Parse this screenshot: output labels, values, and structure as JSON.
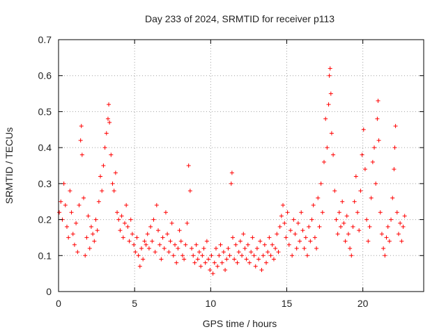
{
  "chart_data": {
    "type": "scatter",
    "title": "Day 233 of 2024, SRMTID for receiver p113",
    "xlabel": "GPS time / hours",
    "ylabel": "SRMTID / TECUs",
    "xlim": [
      0,
      24
    ],
    "ylim": [
      0,
      0.7
    ],
    "xticks": [
      0,
      5,
      10,
      15,
      20
    ],
    "xtick_labels": [
      "0",
      "5",
      "10",
      "15",
      "20"
    ],
    "yticks": [
      0,
      0.1,
      0.2,
      0.3,
      0.4,
      0.5,
      0.6,
      0.7
    ],
    "ytick_labels": [
      "0",
      "0.1",
      "0.2",
      "0.3",
      "0.4",
      "0.5",
      "0.6",
      "0.7"
    ],
    "grid": true,
    "marker": "+",
    "color": "#ff0000",
    "series": [
      {
        "name": "SRMTID",
        "points": [
          [
            0.05,
            0.22
          ],
          [
            0.15,
            0.25
          ],
          [
            0.25,
            0.2
          ],
          [
            0.35,
            0.3
          ],
          [
            0.45,
            0.24
          ],
          [
            0.55,
            0.18
          ],
          [
            0.65,
            0.15
          ],
          [
            0.75,
            0.28
          ],
          [
            0.85,
            0.22
          ],
          [
            0.95,
            0.16
          ],
          [
            1.05,
            0.13
          ],
          [
            1.15,
            0.19
          ],
          [
            1.25,
            0.11
          ],
          [
            1.35,
            0.24
          ],
          [
            1.45,
            0.42
          ],
          [
            1.5,
            0.46
          ],
          [
            1.55,
            0.38
          ],
          [
            1.65,
            0.26
          ],
          [
            1.75,
            0.1
          ],
          [
            1.85,
            0.15
          ],
          [
            1.95,
            0.21
          ],
          [
            2.05,
            0.12
          ],
          [
            2.15,
            0.18
          ],
          [
            2.25,
            0.16
          ],
          [
            2.35,
            0.14
          ],
          [
            2.45,
            0.2
          ],
          [
            2.55,
            0.17
          ],
          [
            2.65,
            0.25
          ],
          [
            2.75,
            0.32
          ],
          [
            2.85,
            0.28
          ],
          [
            2.95,
            0.35
          ],
          [
            3.05,
            0.4
          ],
          [
            3.15,
            0.44
          ],
          [
            3.25,
            0.48
          ],
          [
            3.3,
            0.52
          ],
          [
            3.35,
            0.47
          ],
          [
            3.45,
            0.38
          ],
          [
            3.55,
            0.3
          ],
          [
            3.65,
            0.28
          ],
          [
            3.75,
            0.33
          ],
          [
            3.85,
            0.22
          ],
          [
            3.95,
            0.2
          ],
          [
            4.05,
            0.17
          ],
          [
            4.15,
            0.21
          ],
          [
            4.25,
            0.15
          ],
          [
            4.35,
            0.19
          ],
          [
            4.45,
            0.24
          ],
          [
            4.55,
            0.18
          ],
          [
            4.65,
            0.14
          ],
          [
            4.75,
            0.2
          ],
          [
            4.85,
            0.16
          ],
          [
            4.95,
            0.13
          ],
          [
            5.05,
            0.11
          ],
          [
            5.15,
            0.15
          ],
          [
            5.25,
            0.1
          ],
          [
            5.35,
            0.07
          ],
          [
            5.45,
            0.12
          ],
          [
            5.55,
            0.09
          ],
          [
            5.65,
            0.14
          ],
          [
            5.75,
            0.13
          ],
          [
            5.85,
            0.16
          ],
          [
            5.95,
            0.12
          ],
          [
            6.05,
            0.18
          ],
          [
            6.15,
            0.14
          ],
          [
            6.25,
            0.2
          ],
          [
            6.35,
            0.11
          ],
          [
            6.45,
            0.24
          ],
          [
            6.55,
            0.17
          ],
          [
            6.65,
            0.13
          ],
          [
            6.75,
            0.09
          ],
          [
            6.85,
            0.15
          ],
          [
            6.95,
            0.12
          ],
          [
            7.05,
            0.22
          ],
          [
            7.15,
            0.16
          ],
          [
            7.25,
            0.11
          ],
          [
            7.35,
            0.14
          ],
          [
            7.45,
            0.19
          ],
          [
            7.55,
            0.1
          ],
          [
            7.65,
            0.13
          ],
          [
            7.75,
            0.08
          ],
          [
            7.85,
            0.12
          ],
          [
            7.95,
            0.17
          ],
          [
            8.05,
            0.14
          ],
          [
            8.15,
            0.1
          ],
          [
            8.25,
            0.09
          ],
          [
            8.35,
            0.13
          ],
          [
            8.45,
            0.19
          ],
          [
            8.55,
            0.35
          ],
          [
            8.65,
            0.28
          ],
          [
            8.75,
            0.12
          ],
          [
            8.85,
            0.1
          ],
          [
            8.95,
            0.08
          ],
          [
            9.05,
            0.13
          ],
          [
            9.15,
            0.09
          ],
          [
            9.25,
            0.11
          ],
          [
            9.35,
            0.07
          ],
          [
            9.45,
            0.1
          ],
          [
            9.55,
            0.12
          ],
          [
            9.65,
            0.08
          ],
          [
            9.75,
            0.14
          ],
          [
            9.85,
            0.09
          ],
          [
            9.95,
            0.06
          ],
          [
            10.05,
            0.1
          ],
          [
            10.15,
            0.05
          ],
          [
            10.25,
            0.08
          ],
          [
            10.35,
            0.12
          ],
          [
            10.45,
            0.07
          ],
          [
            10.55,
            0.1
          ],
          [
            10.65,
            0.13
          ],
          [
            10.75,
            0.08
          ],
          [
            10.85,
            0.11
          ],
          [
            10.95,
            0.06
          ],
          [
            11.05,
            0.09
          ],
          [
            11.15,
            0.12
          ],
          [
            11.25,
            0.1
          ],
          [
            11.35,
            0.3
          ],
          [
            11.4,
            0.33
          ],
          [
            11.45,
            0.15
          ],
          [
            11.55,
            0.09
          ],
          [
            11.65,
            0.13
          ],
          [
            11.75,
            0.08
          ],
          [
            11.85,
            0.11
          ],
          [
            11.95,
            0.14
          ],
          [
            12.05,
            0.1
          ],
          [
            12.15,
            0.16
          ],
          [
            12.25,
            0.12
          ],
          [
            12.35,
            0.09
          ],
          [
            12.45,
            0.13
          ],
          [
            12.55,
            0.08
          ],
          [
            12.65,
            0.11
          ],
          [
            12.75,
            0.15
          ],
          [
            12.85,
            0.1
          ],
          [
            12.95,
            0.07
          ],
          [
            13.05,
            0.12
          ],
          [
            13.15,
            0.09
          ],
          [
            13.25,
            0.14
          ],
          [
            13.35,
            0.06
          ],
          [
            13.45,
            0.1
          ],
          [
            13.55,
            0.13
          ],
          [
            13.65,
            0.08
          ],
          [
            13.75,
            0.11
          ],
          [
            13.85,
            0.15
          ],
          [
            13.95,
            0.1
          ],
          [
            14.05,
            0.13
          ],
          [
            14.15,
            0.09
          ],
          [
            14.25,
            0.12
          ],
          [
            14.35,
            0.16
          ],
          [
            14.45,
            0.11
          ],
          [
            14.55,
            0.18
          ],
          [
            14.65,
            0.21
          ],
          [
            14.75,
            0.24
          ],
          [
            14.85,
            0.19
          ],
          [
            14.95,
            0.15
          ],
          [
            15.05,
            0.22
          ],
          [
            15.15,
            0.13
          ],
          [
            15.25,
            0.17
          ],
          [
            15.35,
            0.1
          ],
          [
            15.45,
            0.2
          ],
          [
            15.55,
            0.16
          ],
          [
            15.65,
            0.12
          ],
          [
            15.75,
            0.19
          ],
          [
            15.85,
            0.14
          ],
          [
            15.95,
            0.22
          ],
          [
            16.05,
            0.17
          ],
          [
            16.15,
            0.12
          ],
          [
            16.25,
            0.15
          ],
          [
            16.35,
            0.1
          ],
          [
            16.45,
            0.18
          ],
          [
            16.55,
            0.14
          ],
          [
            16.65,
            0.2
          ],
          [
            16.75,
            0.24
          ],
          [
            16.85,
            0.15
          ],
          [
            16.95,
            0.12
          ],
          [
            17.05,
            0.26
          ],
          [
            17.15,
            0.18
          ],
          [
            17.25,
            0.3
          ],
          [
            17.35,
            0.22
          ],
          [
            17.45,
            0.36
          ],
          [
            17.55,
            0.48
          ],
          [
            17.65,
            0.4
          ],
          [
            17.75,
            0.52
          ],
          [
            17.8,
            0.6
          ],
          [
            17.85,
            0.62
          ],
          [
            17.9,
            0.55
          ],
          [
            17.95,
            0.44
          ],
          [
            18.05,
            0.38
          ],
          [
            18.15,
            0.28
          ],
          [
            18.25,
            0.2
          ],
          [
            18.35,
            0.16
          ],
          [
            18.45,
            0.22
          ],
          [
            18.55,
            0.18
          ],
          [
            18.65,
            0.25
          ],
          [
            18.75,
            0.19
          ],
          [
            18.85,
            0.14
          ],
          [
            18.95,
            0.21
          ],
          [
            19.05,
            0.16
          ],
          [
            19.15,
            0.12
          ],
          [
            19.25,
            0.1
          ],
          [
            19.35,
            0.18
          ],
          [
            19.45,
            0.25
          ],
          [
            19.55,
            0.32
          ],
          [
            19.65,
            0.22
          ],
          [
            19.75,
            0.17
          ],
          [
            19.85,
            0.28
          ],
          [
            19.95,
            0.38
          ],
          [
            20.05,
            0.45
          ],
          [
            20.15,
            0.34
          ],
          [
            20.25,
            0.2
          ],
          [
            20.35,
            0.14
          ],
          [
            20.45,
            0.18
          ],
          [
            20.55,
            0.26
          ],
          [
            20.65,
            0.36
          ],
          [
            20.75,
            0.4
          ],
          [
            20.85,
            0.3
          ],
          [
            20.95,
            0.48
          ],
          [
            21.0,
            0.53
          ],
          [
            21.05,
            0.42
          ],
          [
            21.15,
            0.22
          ],
          [
            21.25,
            0.16
          ],
          [
            21.35,
            0.12
          ],
          [
            21.45,
            0.1
          ],
          [
            21.55,
            0.15
          ],
          [
            21.65,
            0.18
          ],
          [
            21.75,
            0.14
          ],
          [
            21.85,
            0.2
          ],
          [
            21.95,
            0.26
          ],
          [
            22.05,
            0.34
          ],
          [
            22.1,
            0.4
          ],
          [
            22.15,
            0.46
          ],
          [
            22.25,
            0.22
          ],
          [
            22.35,
            0.16
          ],
          [
            22.45,
            0.19
          ],
          [
            22.55,
            0.14
          ],
          [
            22.65,
            0.18
          ],
          [
            22.75,
            0.21
          ]
        ]
      }
    ]
  }
}
